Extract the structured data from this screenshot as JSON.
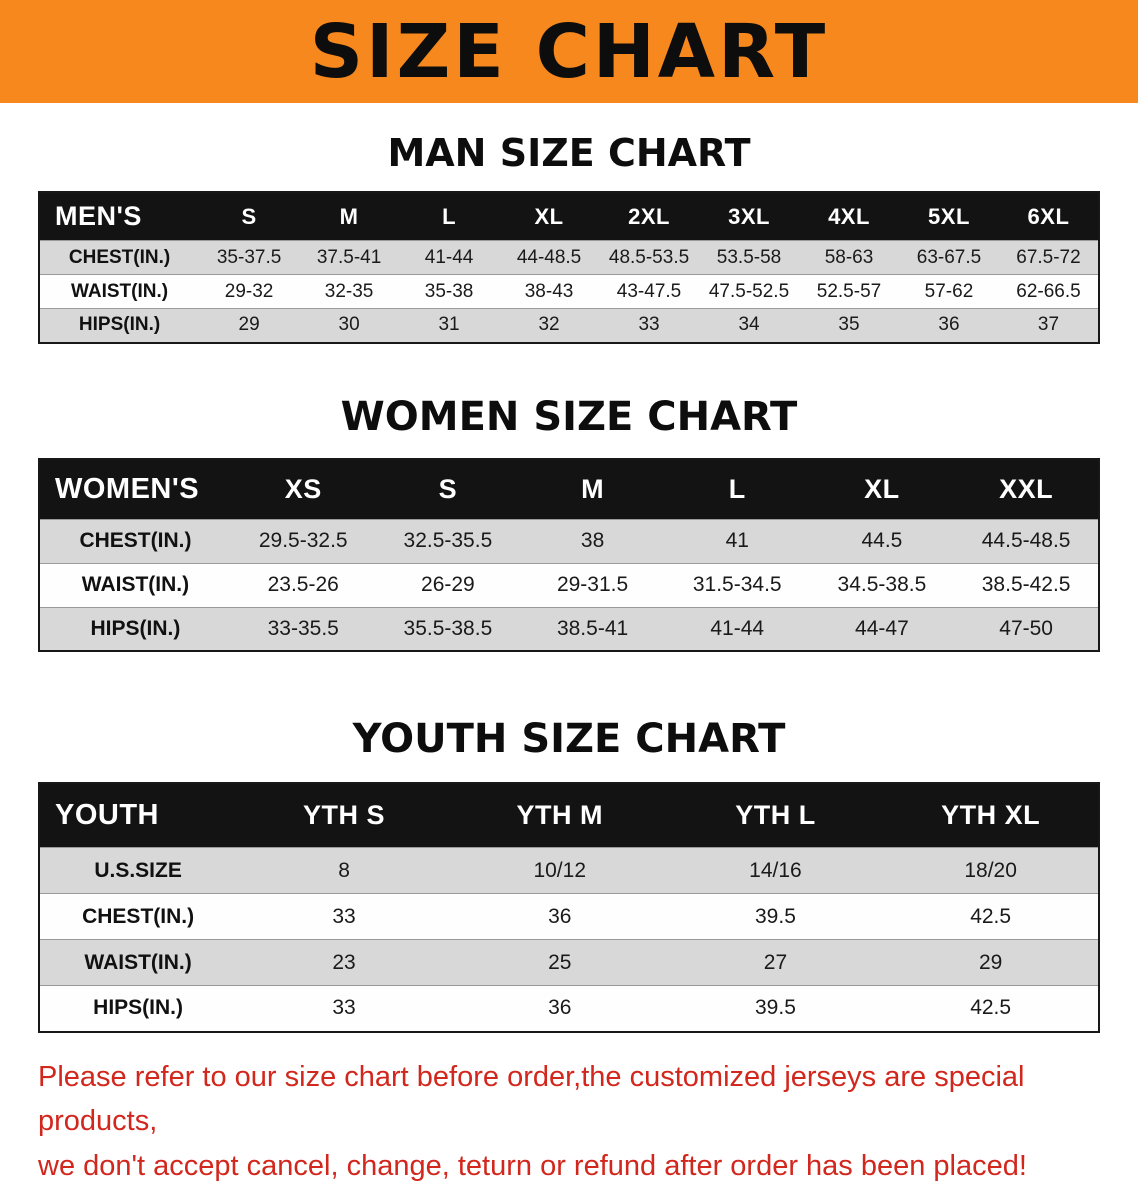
{
  "banner": {
    "title": "SIZE CHART",
    "bg_color": "#f6881d"
  },
  "colors": {
    "banner_bg": "#f6881d",
    "table_header_bg": "#131313",
    "row_stripe": "#d8d8d8",
    "note_red": "#d2271d"
  },
  "chart_data": [
    {
      "type": "table",
      "title": "MAN SIZE CHART",
      "corner_label": "MEN'S",
      "columns": [
        "S",
        "M",
        "L",
        "XL",
        "2XL",
        "3XL",
        "4XL",
        "5XL",
        "6XL"
      ],
      "rows": [
        {
          "label": "CHEST(IN.)",
          "values": [
            "35-37.5",
            "37.5-41",
            "41-44",
            "44-48.5",
            "48.5-53.5",
            "53.5-58",
            "58-63",
            "63-67.5",
            "67.5-72"
          ]
        },
        {
          "label": "WAIST(IN.)",
          "values": [
            "29-32",
            "32-35",
            "35-38",
            "38-43",
            "43-47.5",
            "47.5-52.5",
            "52.5-57",
            "57-62",
            "62-66.5"
          ]
        },
        {
          "label": "HIPS(IN.)",
          "values": [
            "29",
            "30",
            "31",
            "32",
            "33",
            "34",
            "35",
            "36",
            "37"
          ]
        }
      ]
    },
    {
      "type": "table",
      "title": "WOMEN SIZE CHART",
      "corner_label": "WOMEN'S",
      "columns": [
        "XS",
        "S",
        "M",
        "L",
        "XL",
        "XXL"
      ],
      "rows": [
        {
          "label": "CHEST(IN.)",
          "values": [
            "29.5-32.5",
            "32.5-35.5",
            "38",
            "41",
            "44.5",
            "44.5-48.5"
          ]
        },
        {
          "label": "WAIST(IN.)",
          "values": [
            "23.5-26",
            "26-29",
            "29-31.5",
            "31.5-34.5",
            "34.5-38.5",
            "38.5-42.5"
          ]
        },
        {
          "label": "HIPS(IN.)",
          "values": [
            "33-35.5",
            "35.5-38.5",
            "38.5-41",
            "41-44",
            "44-47",
            "47-50"
          ]
        }
      ]
    },
    {
      "type": "table",
      "title": "YOUTH SIZE CHART",
      "corner_label": "YOUTH",
      "columns": [
        "YTH S",
        "YTH M",
        "YTH L",
        "YTH XL"
      ],
      "rows": [
        {
          "label": "U.S.SIZE",
          "values": [
            "8",
            "10/12",
            "14/16",
            "18/20"
          ]
        },
        {
          "label": "CHEST(IN.)",
          "values": [
            "33",
            "36",
            "39.5",
            "42.5"
          ]
        },
        {
          "label": "WAIST(IN.)",
          "values": [
            "23",
            "25",
            "27",
            "29"
          ]
        },
        {
          "label": "HIPS(IN.)",
          "values": [
            "33",
            "36",
            "39.5",
            "42.5"
          ]
        }
      ]
    }
  ],
  "note": {
    "line1": "Please refer to our size chart before order,the customized jerseys are special products,",
    "line2": "we don't accept cancel, change, teturn or refund after order has been placed!"
  }
}
